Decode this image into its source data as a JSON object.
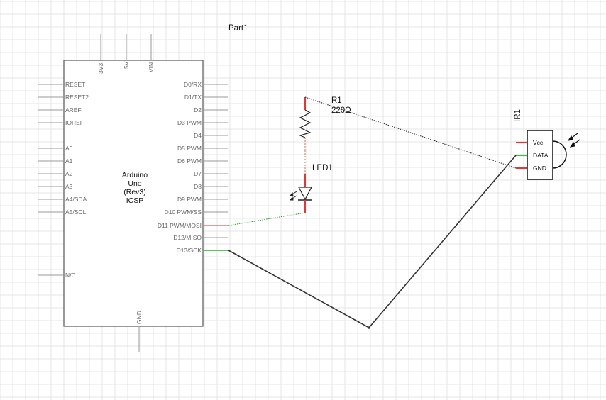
{
  "part_label": "Part1",
  "arduino": {
    "title_lines": [
      "Arduino",
      "Uno",
      "(Rev3)",
      "ICSP"
    ],
    "top_pins": [
      "3V3",
      "5V",
      "VIN"
    ],
    "bottom_pin": "GND",
    "left_pins": [
      "RESET",
      "RESET2",
      "AREF",
      "IOREF",
      "A0",
      "A1",
      "A2",
      "A3",
      "A4/SDA",
      "A5/SCL",
      "N/C"
    ],
    "right_pins": [
      "D0/RX",
      "D1/TX",
      "D2",
      "D3 PWM",
      "D4",
      "D5 PWM",
      "D6 PWM",
      "D7",
      "D8",
      "D9 PWM",
      "D10 PWM/SS",
      "D11 PWM/MOSI",
      "D12/MISO",
      "D13/SCK"
    ]
  },
  "resistor": {
    "ref": "R1",
    "value": "220Ω"
  },
  "led": {
    "ref": "LED1"
  },
  "ir_sensor": {
    "ref": "IR1",
    "pins": [
      "Vcc",
      "DATA",
      "GND"
    ]
  },
  "colors": {
    "grid": "#e4e4e4",
    "outline": "#555555",
    "pin_line": "#999999",
    "connected": "#d93b3b",
    "green": "#3fbf3f",
    "wire": "#333333",
    "ratsnest_green": "#2f9a2f"
  }
}
